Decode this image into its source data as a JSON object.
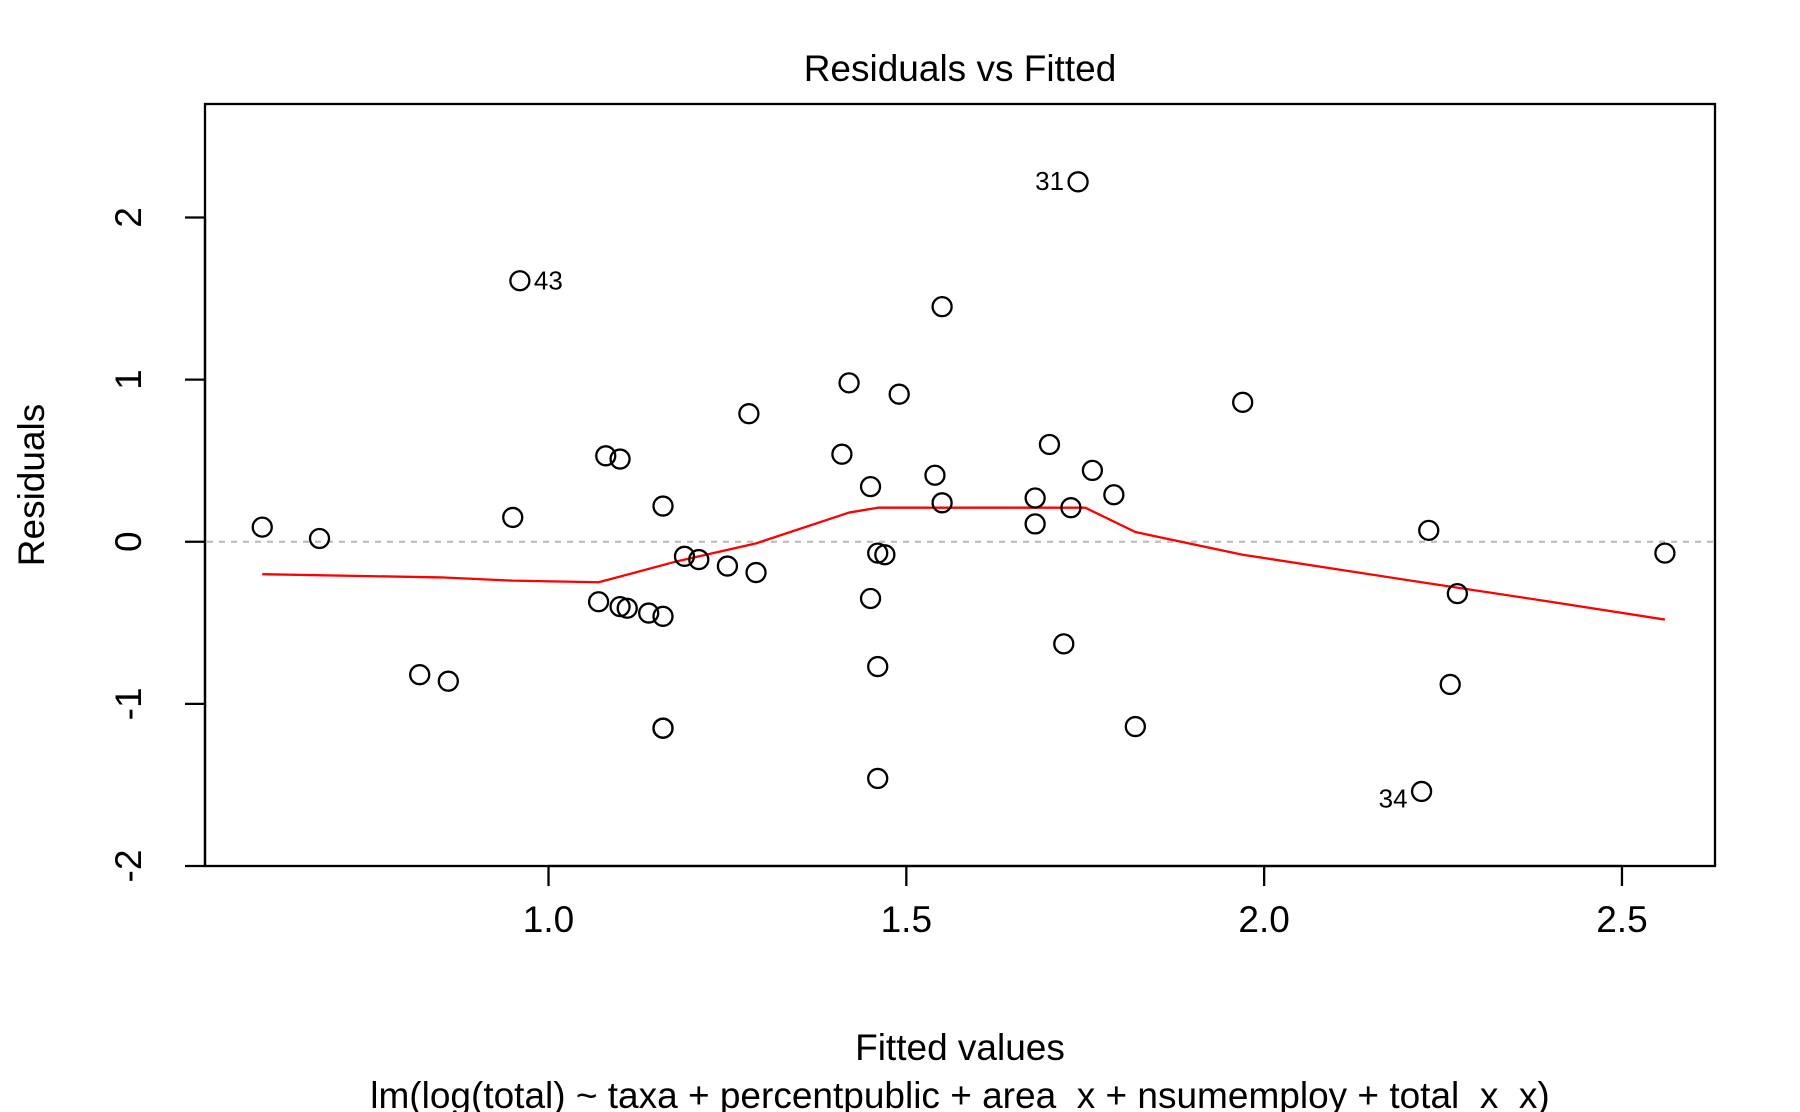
{
  "chart_data": {
    "type": "scatter",
    "title": "Residuals vs Fitted",
    "xlabel": "Fitted values",
    "subtitle": "lm(log(total) ~ taxa + percentpublic + area_x + nsumemploy + total_x_x)",
    "ylabel": "Residuals",
    "xlim": [
      0.52,
      2.63
    ],
    "ylim": [
      -2.0,
      2.7
    ],
    "x_ticks": [
      1.0,
      1.5,
      2.0,
      2.5
    ],
    "x_tick_labels": [
      "1.0",
      "1.5",
      "2.0",
      "2.5"
    ],
    "y_ticks": [
      -2,
      -1,
      0,
      1,
      2
    ],
    "y_tick_labels": [
      "-2",
      "-1",
      "0",
      "1",
      "2"
    ],
    "reference_line": {
      "y": 0,
      "style": "dotted",
      "color": "#bebebe"
    },
    "series": [
      {
        "type": "scatter",
        "marker": "open-circle",
        "color": "#000000",
        "points": [
          {
            "x": 0.6,
            "y": 0.09
          },
          {
            "x": 0.68,
            "y": 0.02
          },
          {
            "x": 0.82,
            "y": -0.82
          },
          {
            "x": 0.86,
            "y": -0.86
          },
          {
            "x": 0.95,
            "y": 0.15
          },
          {
            "x": 0.96,
            "y": 1.61,
            "label": "43"
          },
          {
            "x": 1.07,
            "y": -0.37
          },
          {
            "x": 1.08,
            "y": 0.53
          },
          {
            "x": 1.1,
            "y": -0.4
          },
          {
            "x": 1.1,
            "y": 0.51
          },
          {
            "x": 1.11,
            "y": -0.41
          },
          {
            "x": 1.14,
            "y": -0.44
          },
          {
            "x": 1.16,
            "y": -0.46
          },
          {
            "x": 1.16,
            "y": -1.15
          },
          {
            "x": 1.16,
            "y": -1.15
          },
          {
            "x": 1.16,
            "y": 0.22
          },
          {
            "x": 1.19,
            "y": -0.09
          },
          {
            "x": 1.21,
            "y": -0.11
          },
          {
            "x": 1.25,
            "y": -0.15
          },
          {
            "x": 1.28,
            "y": 0.79
          },
          {
            "x": 1.29,
            "y": -0.19
          },
          {
            "x": 1.41,
            "y": 0.54
          },
          {
            "x": 1.42,
            "y": 0.98
          },
          {
            "x": 1.45,
            "y": -0.35
          },
          {
            "x": 1.45,
            "y": 0.34
          },
          {
            "x": 1.46,
            "y": -0.07
          },
          {
            "x": 1.46,
            "y": -0.77
          },
          {
            "x": 1.47,
            "y": -0.08
          },
          {
            "x": 1.46,
            "y": -1.46
          },
          {
            "x": 1.49,
            "y": 0.91
          },
          {
            "x": 1.54,
            "y": 0.41
          },
          {
            "x": 1.55,
            "y": 1.45
          },
          {
            "x": 1.55,
            "y": 0.24
          },
          {
            "x": 1.68,
            "y": 0.27
          },
          {
            "x": 1.68,
            "y": 0.11
          },
          {
            "x": 1.7,
            "y": 0.6
          },
          {
            "x": 1.72,
            "y": -0.63
          },
          {
            "x": 1.73,
            "y": 0.21
          },
          {
            "x": 1.74,
            "y": 2.22,
            "label": "31"
          },
          {
            "x": 1.76,
            "y": 0.44
          },
          {
            "x": 1.79,
            "y": 0.29
          },
          {
            "x": 1.82,
            "y": -1.14
          },
          {
            "x": 1.97,
            "y": 0.86
          },
          {
            "x": 2.22,
            "y": -1.54,
            "label": "34"
          },
          {
            "x": 2.23,
            "y": 0.07
          },
          {
            "x": 2.26,
            "y": -0.88
          },
          {
            "x": 2.27,
            "y": -0.32
          },
          {
            "x": 2.56,
            "y": -0.07
          }
        ]
      },
      {
        "type": "line",
        "color": "#ff0000",
        "points": [
          {
            "x": 0.6,
            "y": -0.2
          },
          {
            "x": 0.85,
            "y": -0.22
          },
          {
            "x": 0.95,
            "y": -0.24
          },
          {
            "x": 1.07,
            "y": -0.25
          },
          {
            "x": 1.18,
            "y": -0.12
          },
          {
            "x": 1.29,
            "y": -0.01
          },
          {
            "x": 1.42,
            "y": 0.18
          },
          {
            "x": 1.46,
            "y": 0.21
          },
          {
            "x": 1.55,
            "y": 0.21
          },
          {
            "x": 1.75,
            "y": 0.21
          },
          {
            "x": 1.82,
            "y": 0.06
          },
          {
            "x": 1.97,
            "y": -0.08
          },
          {
            "x": 2.22,
            "y": -0.25
          },
          {
            "x": 2.4,
            "y": -0.37
          },
          {
            "x": 2.56,
            "y": -0.48
          }
        ]
      }
    ]
  }
}
